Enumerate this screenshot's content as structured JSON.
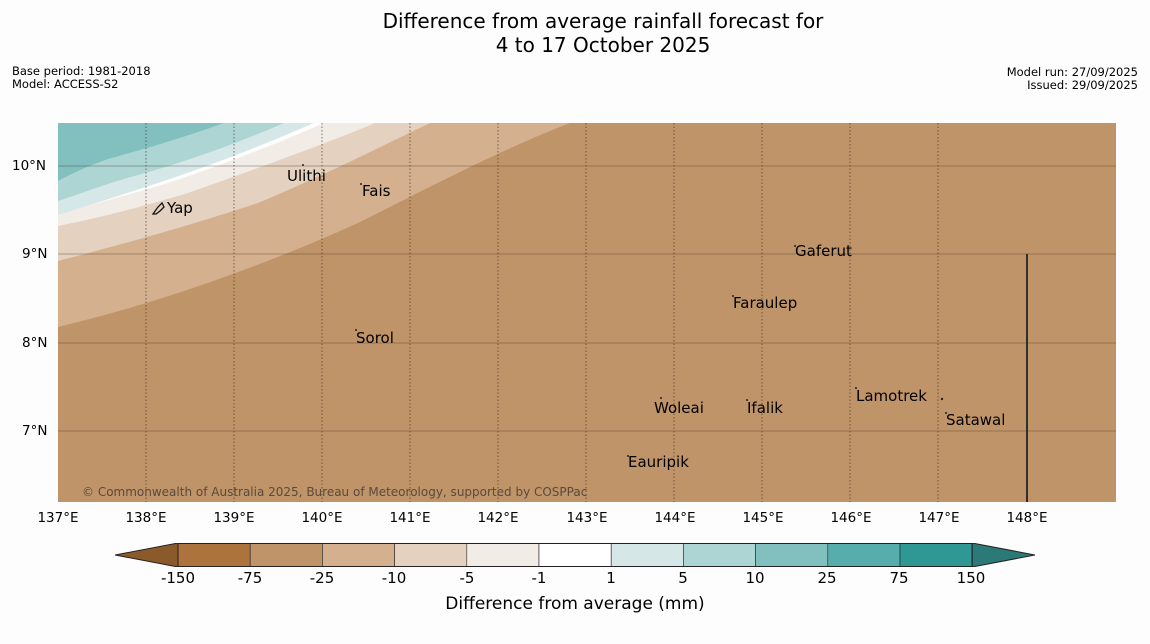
{
  "title": {
    "line1": "Difference from average rainfall forecast for",
    "line2": "4 to 17 October 2025"
  },
  "meta_left": {
    "base_period": "Base period: 1981-2018",
    "model": "Model: ACCESS-S2"
  },
  "meta_right": {
    "model_run": "Model run: 27/09/2025",
    "issued": "Issued: 29/09/2025"
  },
  "map": {
    "copyright": "© Commonwealth of Australia 2025, Bureau of Meteorology, supported by COSPPac",
    "places": {
      "ulithi": "Ulithi",
      "fais": "Fais",
      "yap": "Yap",
      "gaferut": "Gaferut",
      "faraulep": "Faraulep",
      "sorol": "Sorol",
      "woleai": "Woleai",
      "ifalik": "Ifalik",
      "lamotrek": "Lamotrek",
      "satawal": "Satawal",
      "eauripik": "Eauripik"
    },
    "lat_labels": [
      "10°N",
      "9°N",
      "8°N",
      "7°N"
    ],
    "lon_labels": [
      "137°E",
      "138°E",
      "139°E",
      "140°E",
      "141°E",
      "142°E",
      "143°E",
      "144°E",
      "145°E",
      "146°E",
      "147°E",
      "148°E"
    ]
  },
  "legend": {
    "title": "Difference from average (mm)",
    "ticks": [
      "-150",
      "-75",
      "-25",
      "-10",
      "-5",
      "-1",
      "1",
      "5",
      "10",
      "25",
      "75",
      "150"
    ],
    "colors": [
      "#8b5a2b",
      "#ad733d",
      "#c09469",
      "#d4b08e",
      "#e4d1bf",
      "#f2ece6",
      "#ffffff",
      "#d5e8e7",
      "#acd5d4",
      "#82c0bf",
      "#57adab",
      "#2f9895",
      "#2b7a78"
    ]
  }
}
